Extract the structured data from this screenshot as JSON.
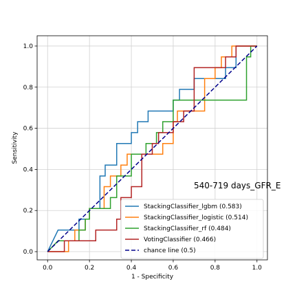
{
  "chart_data": {
    "type": "line",
    "title": "",
    "xlabel": "1 - Specificity",
    "ylabel": "Sensitivity",
    "xlim": [
      -0.05,
      1.05
    ],
    "ylim": [
      -0.04,
      1.05
    ],
    "xticks": [
      0.0,
      0.2,
      0.4,
      0.6,
      0.8,
      1.0
    ],
    "yticks": [
      0.0,
      0.2,
      0.4,
      0.6,
      0.8,
      1.0
    ],
    "xtick_labels": [
      "0.0",
      "0.2",
      "0.4",
      "0.6",
      "0.8",
      "1.0"
    ],
    "ytick_labels": [
      "0.0",
      "0.2",
      "0.4",
      "0.6",
      "0.8",
      "1.0"
    ],
    "grid": true,
    "legend_position": "lower-right",
    "annotation": "540-719 days_GFR_E",
    "series": [
      {
        "name": "StackingClassifier_lgbm (0.583)",
        "color": "#1f77b4",
        "dash": "",
        "x": [
          0,
          0.05,
          0.05,
          0.15,
          0.15,
          0.2,
          0.2,
          0.25,
          0.25,
          0.275,
          0.275,
          0.33,
          0.33,
          0.4,
          0.4,
          0.43,
          0.43,
          0.48,
          0.48,
          0.6,
          0.6,
          0.63,
          0.63,
          0.7,
          0.7,
          0.85,
          0.85,
          0.9,
          0.9,
          1.0
        ],
        "y": [
          0,
          0.105,
          0.105,
          0.105,
          0.158,
          0.158,
          0.21,
          0.21,
          0.368,
          0.368,
          0.421,
          0.421,
          0.526,
          0.526,
          0.579,
          0.579,
          0.632,
          0.632,
          0.684,
          0.684,
          0.737,
          0.737,
          0.789,
          0.789,
          0.842,
          0.842,
          0.895,
          0.895,
          1.0,
          1.0
        ]
      },
      {
        "name": "StackingClassifier_logistic (0.514)",
        "color": "#ff7f0e",
        "dash": "",
        "x": [
          0,
          0.1,
          0.1,
          0.13,
          0.13,
          0.18,
          0.18,
          0.2,
          0.2,
          0.27,
          0.27,
          0.3,
          0.3,
          0.35,
          0.35,
          0.38,
          0.38,
          0.55,
          0.55,
          0.6,
          0.6,
          0.62,
          0.62,
          0.75,
          0.75,
          0.8,
          0.8,
          0.83,
          0.83,
          0.88,
          0.88,
          0.9,
          0.9,
          1.0
        ],
        "y": [
          0,
          0,
          0.053,
          0.053,
          0.105,
          0.105,
          0.158,
          0.158,
          0.21,
          0.21,
          0.316,
          0.316,
          0.368,
          0.368,
          0.421,
          0.421,
          0.474,
          0.474,
          0.526,
          0.526,
          0.632,
          0.632,
          0.684,
          0.684,
          0.842,
          0.842,
          0.895,
          0.895,
          0.947,
          0.947,
          1.0,
          1.0,
          1.0,
          1.0
        ]
      },
      {
        "name": "StackingClassifier_rf (0.484)",
        "color": "#2ca02c",
        "dash": "",
        "x": [
          0,
          0.05,
          0.05,
          0.15,
          0.15,
          0.18,
          0.18,
          0.2,
          0.2,
          0.22,
          0.22,
          0.3,
          0.3,
          0.33,
          0.33,
          0.4,
          0.4,
          0.47,
          0.47,
          0.52,
          0.52,
          0.55,
          0.55,
          0.6,
          0.6,
          0.95,
          0.95,
          0.97,
          0.97,
          1.0
        ],
        "y": [
          0,
          0.053,
          0.053,
          0.053,
          0.105,
          0.105,
          0.158,
          0.158,
          0.21,
          0.21,
          0.21,
          0.21,
          0.263,
          0.263,
          0.368,
          0.368,
          0.474,
          0.474,
          0.526,
          0.526,
          0.579,
          0.579,
          0.632,
          0.632,
          0.737,
          0.737,
          0.947,
          0.947,
          1.0,
          1.0
        ]
      },
      {
        "name": "VotingClassifier (0.466)",
        "color": "#b22222",
        "dash": "",
        "x": [
          0,
          0.08,
          0.08,
          0.23,
          0.23,
          0.33,
          0.33,
          0.35,
          0.35,
          0.4,
          0.4,
          0.45,
          0.45,
          0.5,
          0.5,
          0.53,
          0.53,
          0.6,
          0.6,
          0.65,
          0.65,
          0.7,
          0.7,
          0.85,
          0.85,
          0.9,
          0.9,
          1.0
        ],
        "y": [
          0,
          0,
          0.053,
          0.053,
          0.105,
          0.105,
          0.158,
          0.158,
          0.263,
          0.263,
          0.316,
          0.316,
          0.474,
          0.474,
          0.526,
          0.526,
          0.579,
          0.579,
          0.632,
          0.632,
          0.684,
          0.684,
          0.895,
          0.895,
          0.947,
          0.947,
          1.0,
          1.0
        ]
      },
      {
        "name": "chance line (0.5)",
        "color": "#00008b",
        "dash": "6,3",
        "x": [
          0,
          1
        ],
        "y": [
          0,
          1
        ]
      }
    ]
  }
}
